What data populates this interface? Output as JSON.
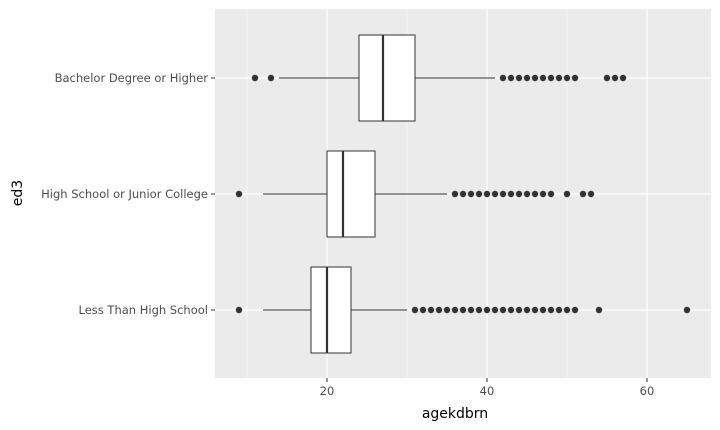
{
  "chart_data": {
    "type": "boxplot",
    "orientation": "horizontal",
    "xlabel": "agekdbrn",
    "ylabel": "ed3",
    "xlim": [
      6,
      68
    ],
    "x_ticks": [
      20,
      40,
      60
    ],
    "x_tick_labels": [
      "20",
      "40",
      "60"
    ],
    "grid": true,
    "colors": {
      "panel": "#ebebeb",
      "grid_major": "#ffffff",
      "box_fill": "#ffffff",
      "box_line": "#333333",
      "outlier": "#333333"
    },
    "categories": [
      "Bachelor Degree or Higher",
      "High School or Junior College",
      "Less Than High School"
    ],
    "boxes": [
      {
        "category": "Bachelor Degree or Higher",
        "whisker_low": 14,
        "q1": 24,
        "median": 27,
        "q3": 31,
        "whisker_high": 41,
        "outliers": [
          11,
          13,
          42,
          43,
          44,
          45,
          46,
          47,
          48,
          49,
          50,
          51,
          55,
          56,
          57
        ]
      },
      {
        "category": "High School or Junior College",
        "whisker_low": 12,
        "q1": 20,
        "median": 22,
        "q3": 26,
        "whisker_high": 35,
        "outliers": [
          9,
          36,
          37,
          38,
          39,
          40,
          41,
          42,
          43,
          44,
          45,
          46,
          47,
          48,
          50,
          52,
          53
        ]
      },
      {
        "category": "Less Than High School",
        "whisker_low": 12,
        "q1": 18,
        "median": 20,
        "q3": 23,
        "whisker_high": 30,
        "outliers": [
          9,
          31,
          32,
          33,
          34,
          35,
          36,
          37,
          38,
          39,
          40,
          41,
          42,
          43,
          44,
          45,
          46,
          47,
          48,
          49,
          50,
          51,
          54,
          65
        ]
      }
    ]
  }
}
